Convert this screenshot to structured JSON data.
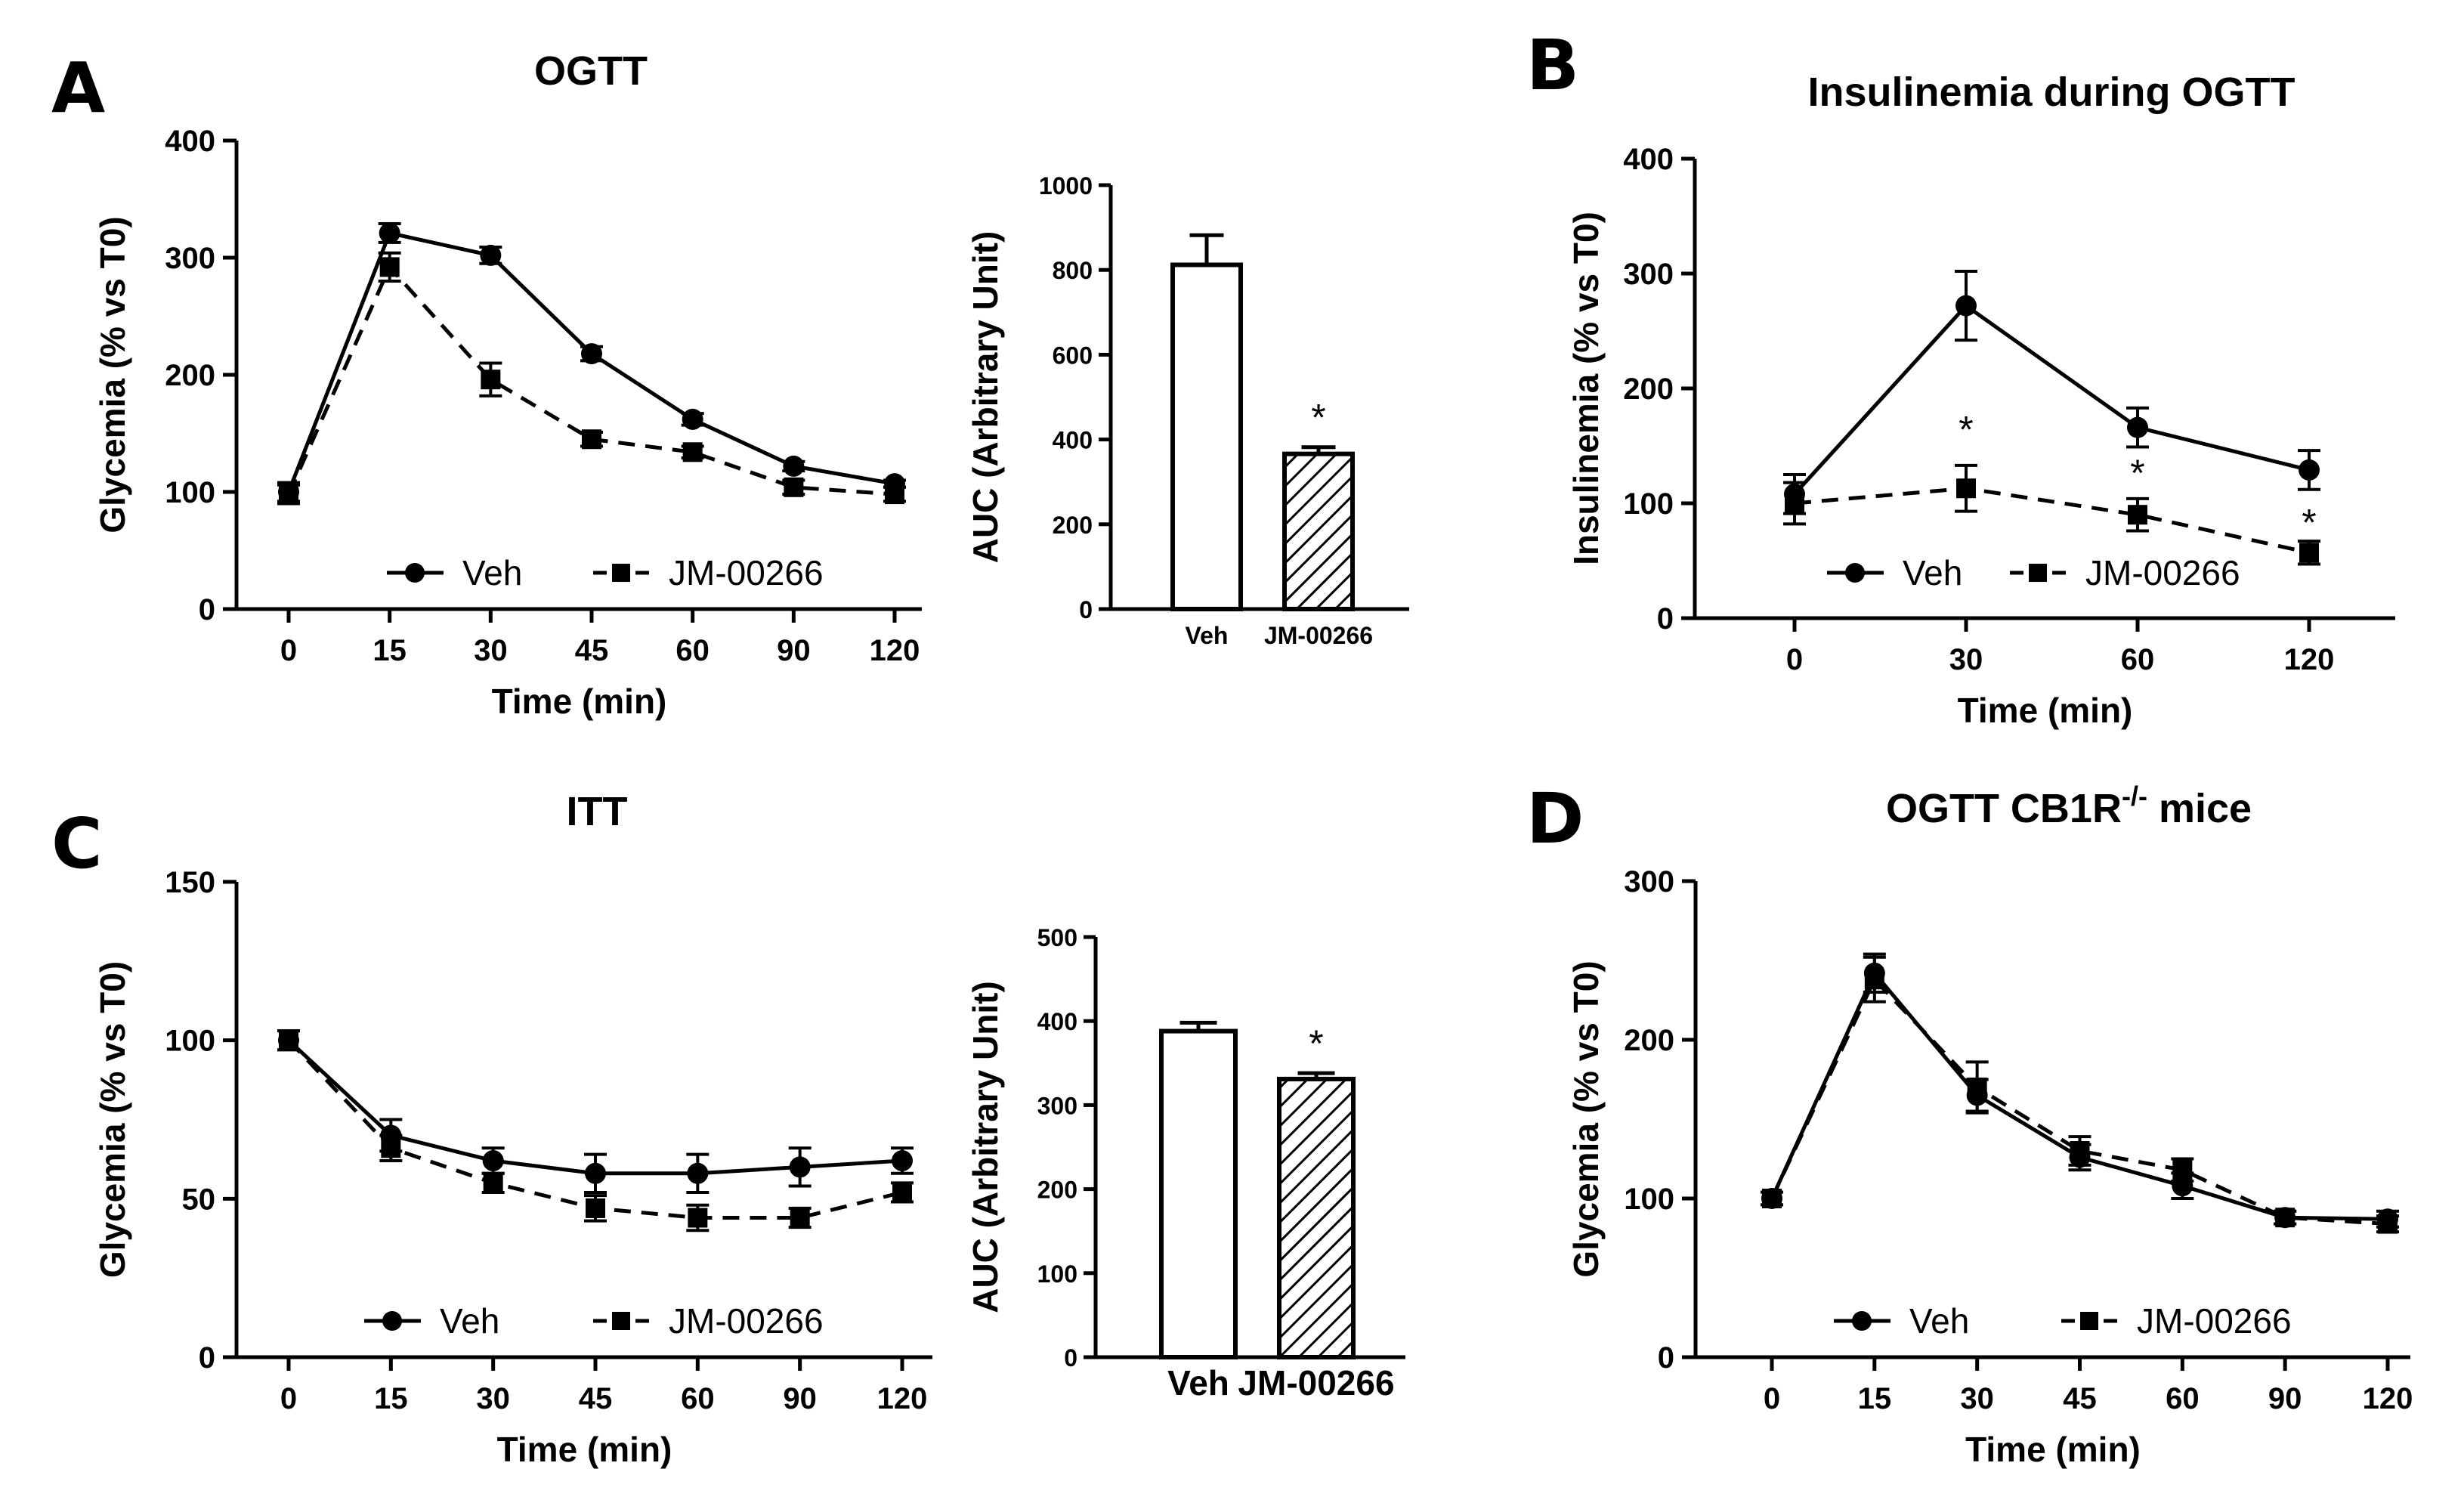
{
  "panels": [
    {
      "id": "A",
      "letter": "A",
      "title": "OGTT",
      "line": {
        "xlabel": "Time (min)",
        "ylabel": "Glycemia (% vs T0)",
        "xticks": [
          "0",
          "15",
          "30",
          "45",
          "60",
          "90",
          "120"
        ],
        "yticks": [
          0,
          100,
          200,
          300,
          400
        ],
        "ylim": [
          0,
          400
        ],
        "legend": [
          "Veh",
          "JM-00266"
        ]
      },
      "bar": {
        "ylabel": "AUC (Arbitrary Unit)",
        "categories": [
          "Veh",
          "JM-00266"
        ],
        "yticks": [
          0,
          200,
          400,
          600,
          800,
          1000
        ],
        "ylim": [
          0,
          1000
        ],
        "star": "*"
      }
    },
    {
      "id": "B",
      "letter": "B",
      "title": "Insulinemia during OGTT",
      "line": {
        "xlabel": "Time (min)",
        "ylabel": "Insulinemia (% vs T0)",
        "xticks": [
          "0",
          "30",
          "60",
          "120"
        ],
        "yticks": [
          0,
          100,
          200,
          300,
          400
        ],
        "ylim": [
          0,
          400
        ],
        "legend": [
          "Veh",
          "JM-00266"
        ],
        "stars": [
          "*",
          "*",
          "*"
        ]
      }
    },
    {
      "id": "C",
      "letter": "C",
      "title": "ITT",
      "line": {
        "xlabel": "Time (min)",
        "ylabel": "Glycemia (% vs T0)",
        "xticks": [
          "0",
          "15",
          "30",
          "45",
          "60",
          "90",
          "120"
        ],
        "yticks": [
          0,
          50,
          100,
          150
        ],
        "ylim": [
          0,
          150
        ],
        "legend": [
          "Veh",
          "JM-00266"
        ]
      },
      "bar": {
        "ylabel": "AUC (Arbitrary Unit)",
        "categories": [
          "Veh",
          "JM-00266"
        ],
        "yticks": [
          0,
          100,
          200,
          300,
          400,
          500
        ],
        "ylim": [
          0,
          500
        ],
        "star": "*"
      }
    },
    {
      "id": "D",
      "letter": "D",
      "title_main": "OGTT CB1R",
      "title_sup": "-/-",
      "title_end": " mice",
      "line": {
        "xlabel": "Time (min)",
        "ylabel": "Glycemia (% vs T0)",
        "xticks": [
          "0",
          "15",
          "30",
          "45",
          "60",
          "90",
          "120"
        ],
        "yticks": [
          0,
          100,
          200,
          300
        ],
        "ylim": [
          0,
          300
        ],
        "legend": [
          "Veh",
          "JM-00266"
        ]
      }
    }
  ],
  "chart_data": [
    {
      "panel": "A",
      "type": "line",
      "title": "OGTT",
      "xlabel": "Time (min)",
      "ylabel": "Glycemia (% vs T0)",
      "categories": [
        "0",
        "15",
        "30",
        "45",
        "60",
        "90",
        "120"
      ],
      "ylim": [
        0,
        400
      ],
      "legend_position": "bottom",
      "series": [
        {
          "name": "Veh",
          "values": [
            100,
            321,
            302,
            218,
            162,
            122,
            107
          ],
          "errors": [
            8,
            8,
            7,
            6,
            5,
            4,
            3
          ]
        },
        {
          "name": "JM-00266",
          "values": [
            98,
            292,
            196,
            145,
            134,
            104,
            98
          ],
          "errors": [
            8,
            12,
            14,
            6,
            5,
            6,
            6
          ]
        }
      ]
    },
    {
      "panel": "A",
      "type": "bar",
      "xlabel": "",
      "ylabel": "AUC (Arbitrary Unit)",
      "categories": [
        "Veh",
        "JM-00266"
      ],
      "values": [
        812,
        366
      ],
      "errors": [
        70,
        16
      ],
      "ylim": [
        0,
        1000
      ],
      "significance": [
        "",
        "*"
      ]
    },
    {
      "panel": "B",
      "type": "line",
      "title": "Insulinemia during OGTT",
      "xlabel": "Time (min)",
      "ylabel": "Insulinemia (% vs T0)",
      "categories": [
        "0",
        "30",
        "60",
        "120"
      ],
      "ylim": [
        0,
        400
      ],
      "legend_position": "bottom",
      "series": [
        {
          "name": "Veh",
          "values": [
            108,
            272,
            166,
            129
          ],
          "errors": [
            17,
            30,
            17,
            17
          ]
        },
        {
          "name": "JM-00266",
          "values": [
            100,
            113,
            90,
            57
          ],
          "errors": [
            18,
            20,
            14,
            10
          ]
        }
      ],
      "significance": [
        {
          "x": "30",
          "label": "*"
        },
        {
          "x": "60",
          "label": "*"
        },
        {
          "x": "120",
          "label": "*"
        }
      ]
    },
    {
      "panel": "C",
      "type": "line",
      "title": "ITT",
      "xlabel": "Time (min)",
      "ylabel": "Glycemia (% vs T0)",
      "categories": [
        "0",
        "15",
        "30",
        "45",
        "60",
        "90",
        "120"
      ],
      "ylim": [
        0,
        150
      ],
      "legend_position": "bottom",
      "series": [
        {
          "name": "Veh",
          "values": [
            100,
            70,
            62,
            58,
            58,
            60,
            62
          ],
          "errors": [
            3,
            5,
            4,
            6,
            6,
            6,
            4
          ]
        },
        {
          "name": "JM-00266",
          "values": [
            100,
            66,
            55,
            47,
            44,
            44,
            52
          ],
          "errors": [
            3,
            4,
            3,
            4,
            4,
            3,
            3
          ]
        }
      ]
    },
    {
      "panel": "C",
      "type": "bar",
      "xlabel": "",
      "ylabel": "AUC (Arbitrary Unit)",
      "categories": [
        "Veh",
        "JM-00266"
      ],
      "values": [
        388,
        331
      ],
      "errors": [
        10,
        7
      ],
      "ylim": [
        0,
        500
      ],
      "significance": [
        "",
        "*"
      ]
    },
    {
      "panel": "D",
      "type": "line",
      "title": "OGTT CB1R-/- mice",
      "xlabel": "Time (min)",
      "ylabel": "Glycemia (% vs T0)",
      "categories": [
        "0",
        "15",
        "30",
        "45",
        "60",
        "90",
        "120"
      ],
      "ylim": [
        0,
        300
      ],
      "legend_position": "bottom",
      "series": [
        {
          "name": "Veh",
          "values": [
            100,
            242,
            165,
            126,
            108,
            88,
            87
          ],
          "errors": [
            4,
            12,
            10,
            8,
            8,
            4,
            5
          ]
        },
        {
          "name": "JM-00266",
          "values": [
            100,
            238,
            170,
            130,
            118,
            88,
            84
          ],
          "errors": [
            4,
            14,
            16,
            9,
            7,
            4,
            5
          ]
        }
      ]
    }
  ]
}
